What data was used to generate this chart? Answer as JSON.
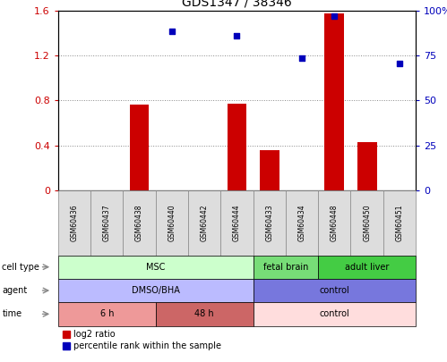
{
  "title": "GDS1347 / 38346",
  "samples": [
    "GSM60436",
    "GSM60437",
    "GSM60438",
    "GSM60440",
    "GSM60442",
    "GSM60444",
    "GSM60433",
    "GSM60434",
    "GSM60448",
    "GSM60450",
    "GSM60451"
  ],
  "log2_ratio": [
    0,
    0,
    0.76,
    0,
    0,
    0.77,
    0.36,
    0,
    1.58,
    0.43,
    0
  ],
  "pct_rank_left_scaled": [
    null,
    null,
    null,
    1.42,
    null,
    1.38,
    null,
    1.18,
    1.55,
    null,
    1.13
  ],
  "ylim_left": [
    0,
    1.6
  ],
  "ylim_right": [
    0,
    100
  ],
  "yticks_left": [
    0,
    0.4,
    0.8,
    1.2,
    1.6
  ],
  "yticks_right": [
    0,
    25,
    50,
    75,
    100
  ],
  "ytick_labels_left": [
    "0",
    "0.4",
    "0.8",
    "1.2",
    "1.6"
  ],
  "ytick_labels_right": [
    "0",
    "25",
    "50",
    "75",
    "100%"
  ],
  "bar_color": "#cc0000",
  "dot_color": "#0000bb",
  "cell_type_groups": [
    {
      "label": "MSC",
      "start": 0,
      "end": 5,
      "color": "#ccffcc"
    },
    {
      "label": "fetal brain",
      "start": 6,
      "end": 7,
      "color": "#77dd77"
    },
    {
      "label": "adult liver",
      "start": 8,
      "end": 10,
      "color": "#44cc44"
    }
  ],
  "agent_groups": [
    {
      "label": "DMSO/BHA",
      "start": 0,
      "end": 5,
      "color": "#bbbbff"
    },
    {
      "label": "control",
      "start": 6,
      "end": 10,
      "color": "#7777dd"
    }
  ],
  "time_groups": [
    {
      "label": "6 h",
      "start": 0,
      "end": 2,
      "color": "#ee9999"
    },
    {
      "label": "48 h",
      "start": 3,
      "end": 5,
      "color": "#cc6666"
    },
    {
      "label": "control",
      "start": 6,
      "end": 10,
      "color": "#ffdddd"
    }
  ],
  "row_labels": [
    "cell type",
    "agent",
    "time"
  ],
  "legend_items": [
    {
      "label": "log2 ratio",
      "color": "#cc0000"
    },
    {
      "label": "percentile rank within the sample",
      "color": "#0000bb"
    }
  ],
  "bg_color": "#ffffff",
  "grid_color": "#888888",
  "sample_box_color": "#dddddd",
  "sample_box_border": "#888888"
}
